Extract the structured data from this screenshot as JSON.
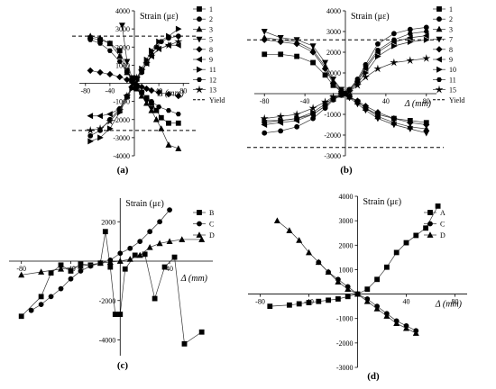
{
  "chart_data": [
    {
      "type": "line",
      "panel_label": "(a)",
      "ylabel": "Strain (με)",
      "xlabel": "Δ (mm)",
      "xlim": [
        -90,
        90
      ],
      "ylim": [
        -4000,
        4000
      ],
      "xticks": [
        -80,
        -40,
        0,
        40,
        80
      ],
      "yticks": [
        -4000,
        -3000,
        -2000,
        -1000,
        0,
        1000,
        2000,
        3000,
        4000
      ],
      "yield_lines": [
        2600,
        -2600
      ],
      "legend_position": "right",
      "series": [
        {
          "name": "1",
          "marker": "square",
          "x": [
            -72,
            -56,
            -40,
            -24,
            -12,
            -4,
            0,
            4,
            12,
            20,
            28,
            36,
            44,
            56,
            72
          ],
          "y": [
            2500,
            2400,
            2200,
            1800,
            700,
            200,
            0,
            -200,
            -500,
            -800,
            -1100,
            -1500,
            -1900,
            -2200,
            -2200
          ]
        },
        {
          "name": "2",
          "marker": "circle",
          "x": [
            -72,
            -56,
            -40,
            -24,
            -12,
            -4,
            0,
            4,
            12,
            20,
            28,
            36,
            44,
            56,
            72
          ],
          "y": [
            -2900,
            -2600,
            -2000,
            -1400,
            -700,
            -200,
            0,
            200,
            600,
            1100,
            1600,
            2000,
            2300,
            2500,
            2600
          ]
        },
        {
          "name": "3",
          "marker": "triangle-up",
          "x": [
            -72,
            -56,
            -40,
            -24,
            -12,
            -4,
            0,
            4,
            12,
            20,
            28,
            36,
            44,
            56,
            72
          ],
          "y": [
            2600,
            2500,
            2200,
            1500,
            600,
            200,
            0,
            -300,
            -700,
            -1100,
            -1500,
            -2000,
            -2500,
            -3400,
            -3600
          ]
        },
        {
          "name": "5",
          "marker": "triangle-down",
          "x": [
            -20,
            -12,
            -4,
            0,
            4,
            12,
            20,
            28
          ],
          "y": [
            3200,
            1200,
            300,
            0,
            -200,
            -600,
            -1000,
            -1400
          ]
        },
        {
          "name": "8",
          "marker": "diamond",
          "x": [
            -72,
            -56,
            -40,
            -24,
            -12,
            -4,
            0,
            4,
            12,
            20,
            28,
            40,
            56,
            72
          ],
          "y": [
            700,
            600,
            500,
            350,
            200,
            80,
            0,
            -100,
            -200,
            -300,
            -400,
            -500,
            -600,
            -700
          ]
        },
        {
          "name": "9",
          "marker": "triangle-left",
          "x": [
            -72,
            -56,
            -40,
            -24,
            -12,
            -4,
            0,
            4,
            12,
            20,
            28,
            40,
            56,
            72
          ],
          "y": [
            -1800,
            -1800,
            -1700,
            -1400,
            -700,
            -250,
            0,
            250,
            700,
            1100,
            1500,
            1900,
            2100,
            2100
          ]
        },
        {
          "name": "11",
          "marker": "triangle-right",
          "x": [
            -72,
            -56,
            -40,
            -24,
            -12,
            -4,
            0,
            4,
            12,
            20,
            28,
            40,
            56,
            72
          ],
          "y": [
            -3200,
            -3000,
            -2500,
            -1600,
            -800,
            -300,
            0,
            300,
            800,
            1300,
            1800,
            2300,
            2600,
            3000
          ]
        },
        {
          "name": "12",
          "marker": "hexagon",
          "x": [
            -72,
            -56,
            -40,
            -24,
            -12,
            -4,
            0,
            4,
            12,
            20,
            28,
            40,
            56,
            72
          ],
          "y": [
            2400,
            2200,
            1800,
            1200,
            600,
            200,
            0,
            -200,
            -500,
            -800,
            -1000,
            -1300,
            -1500,
            -1700
          ]
        },
        {
          "name": "13",
          "marker": "star",
          "x": [
            -72,
            -56,
            -40,
            -24,
            -12,
            -4,
            0,
            4,
            12,
            20,
            28,
            40,
            56,
            72
          ],
          "y": [
            -2600,
            -2500,
            -2100,
            -1500,
            -700,
            -250,
            0,
            300,
            700,
            1100,
            1500,
            1900,
            2100,
            2300
          ]
        },
        {
          "name": "Yield",
          "style": "dashed"
        }
      ]
    },
    {
      "type": "line",
      "panel_label": "(b)",
      "ylabel": "Strain (με)",
      "xlabel": "Δ (mm)",
      "xlim": [
        -90,
        90
      ],
      "ylim": [
        -3000,
        4000
      ],
      "xticks": [
        -80,
        -40,
        0,
        40,
        80
      ],
      "yticks": [
        -3000,
        -2000,
        -1000,
        0,
        1000,
        2000,
        3000,
        4000
      ],
      "yield_lines": [
        2600,
        -2600
      ],
      "legend_position": "right",
      "series": [
        {
          "name": "1",
          "marker": "square",
          "x": [
            -80,
            -64,
            -48,
            -32,
            -20,
            -12,
            -4,
            0,
            4,
            12,
            20,
            32,
            48,
            64,
            80
          ],
          "y": [
            1900,
            1900,
            1800,
            1500,
            900,
            400,
            100,
            0,
            -150,
            -400,
            -700,
            -1000,
            -1200,
            -1300,
            -1400
          ]
        },
        {
          "name": "2",
          "marker": "circle",
          "x": [
            -80,
            -64,
            -48,
            -32,
            -20,
            -12,
            -4,
            0,
            4,
            12,
            20,
            32,
            48,
            64,
            80
          ],
          "y": [
            -1900,
            -1800,
            -1600,
            -1200,
            -700,
            -300,
            -80,
            0,
            200,
            700,
            1400,
            2400,
            2900,
            3100,
            3200
          ]
        },
        {
          "name": "3",
          "marker": "triangle-up",
          "x": [
            -80,
            -64,
            -48,
            -32,
            -20,
            -12,
            -4,
            0,
            4,
            12,
            20,
            32,
            48,
            64,
            80
          ],
          "y": [
            2700,
            2600,
            2500,
            2100,
            1300,
            600,
            150,
            0,
            -150,
            -400,
            -700,
            -1100,
            -1400,
            -1600,
            -1700
          ]
        },
        {
          "name": "7",
          "marker": "triangle-down",
          "x": [
            -80,
            -64,
            -48,
            -32,
            -20,
            -12,
            -4,
            0,
            4,
            12,
            20,
            32,
            48,
            64,
            80
          ],
          "y": [
            3000,
            2700,
            2600,
            2300,
            1500,
            700,
            200,
            0,
            -200,
            -500,
            -800,
            -1200,
            -1500,
            -1700,
            -1900
          ]
        },
        {
          "name": "8",
          "marker": "diamond",
          "x": [
            -80,
            -64,
            -48,
            -32,
            -20,
            -12,
            -4,
            0,
            4,
            12,
            20,
            32,
            48,
            64,
            80
          ],
          "y": [
            2600,
            2500,
            2400,
            2000,
            1200,
            500,
            100,
            0,
            -150,
            -350,
            -600,
            -900,
            -1200,
            -1400,
            -1500
          ]
        },
        {
          "name": "9",
          "marker": "triangle-left",
          "x": [
            -80,
            -64,
            -48,
            -32,
            -20,
            -12,
            -4,
            0,
            4,
            12,
            20,
            32,
            48,
            64,
            80
          ],
          "y": [
            -1500,
            -1400,
            -1300,
            -1000,
            -600,
            -250,
            -60,
            0,
            200,
            600,
            1200,
            2000,
            2500,
            2700,
            2800
          ]
        },
        {
          "name": "10",
          "marker": "triangle-right",
          "x": [
            -80,
            -64,
            -48,
            -32,
            -20,
            -12,
            -4,
            0,
            4,
            12,
            20,
            32,
            48,
            64,
            80
          ],
          "y": [
            -1300,
            -1300,
            -1200,
            -900,
            -500,
            -200,
            -50,
            0,
            150,
            500,
            1000,
            1800,
            2300,
            2500,
            2600
          ]
        },
        {
          "name": "11",
          "marker": "hexagon",
          "x": [
            -80,
            -64,
            -48,
            -32,
            -20,
            -12,
            -4,
            0,
            4,
            12,
            20,
            32,
            48,
            64,
            80
          ],
          "y": [
            -1400,
            -1300,
            -1200,
            -1000,
            -600,
            -250,
            -60,
            0,
            200,
            600,
            1300,
            2100,
            2600,
            2900,
            3000
          ]
        },
        {
          "name": "15",
          "marker": "star",
          "x": [
            -80,
            -64,
            -48,
            -32,
            -20,
            -12,
            -4,
            0,
            4,
            12,
            20,
            32,
            48,
            64,
            80
          ],
          "y": [
            -1200,
            -1100,
            -1000,
            -700,
            -400,
            -150,
            -40,
            0,
            100,
            400,
            800,
            1200,
            1500,
            1600,
            1700
          ]
        },
        {
          "name": "Yield",
          "style": "dashed"
        }
      ]
    },
    {
      "type": "line",
      "panel_label": "(c)",
      "ylabel": "Strain (με)",
      "xlabel": "Δ (mm)",
      "xlim": [
        -90,
        75
      ],
      "ylim": [
        -4800,
        3200
      ],
      "xticks": [
        -80,
        -40,
        0,
        40
      ],
      "yticks": [
        -4000,
        -2000,
        0,
        2000
      ],
      "legend_position": "top-right",
      "series": [
        {
          "name": "B",
          "marker": "square",
          "x": [
            -80,
            -64,
            -56,
            -48,
            -40,
            -32,
            -24,
            -16,
            -12,
            -8,
            -4,
            0,
            4,
            12,
            20,
            28,
            36,
            44,
            52,
            66
          ],
          "y": [
            -2800,
            -1800,
            -600,
            -200,
            -500,
            -150,
            -200,
            -100,
            1500,
            -300,
            -2700,
            -2700,
            -400,
            300,
            350,
            -1900,
            -300,
            200,
            -4200,
            -3600
          ]
        },
        {
          "name": "C",
          "marker": "circle",
          "x": [
            -72,
            -64,
            -56,
            -48,
            -40,
            -32,
            -24,
            -16,
            -8,
            0,
            8,
            16,
            24,
            32,
            40
          ],
          "y": [
            -2500,
            -2200,
            -1800,
            -1400,
            -900,
            -500,
            -250,
            -100,
            50,
            400,
            650,
            1000,
            1500,
            2000,
            2600
          ]
        },
        {
          "name": "D",
          "marker": "triangle-up",
          "x": [
            -80,
            -64,
            -48,
            -32,
            -16,
            -8,
            0,
            8,
            16,
            24,
            32,
            40,
            50,
            66
          ],
          "y": [
            -700,
            -550,
            -400,
            -250,
            -100,
            -50,
            0,
            100,
            300,
            700,
            900,
            1000,
            1100,
            1100
          ]
        }
      ]
    },
    {
      "type": "line",
      "panel_label": "(d)",
      "ylabel": "Strain (με)",
      "xlabel": "Δ (mm)",
      "xlim": [
        -90,
        90
      ],
      "ylim": [
        -3000,
        4000
      ],
      "xticks": [
        -80,
        -40,
        0,
        40,
        80
      ],
      "yticks": [
        -3000,
        -2000,
        -1000,
        0,
        1000,
        2000,
        3000,
        4000
      ],
      "legend_position": "top-right",
      "series": [
        {
          "name": "A",
          "marker": "square",
          "x": [
            -72,
            -56,
            -48,
            -40,
            -32,
            -24,
            -16,
            -8,
            0,
            8,
            16,
            24,
            32,
            40,
            48,
            56,
            66
          ],
          "y": [
            -500,
            -450,
            -400,
            -350,
            -300,
            -250,
            -200,
            -100,
            0,
            200,
            600,
            1100,
            1700,
            2100,
            2400,
            2700,
            3600
          ]
        },
        {
          "name": "C",
          "marker": "circle",
          "x": [
            -32,
            -24,
            -16,
            -8,
            0,
            8,
            16,
            24,
            32,
            40,
            48
          ],
          "y": [
            1300,
            900,
            600,
            300,
            0,
            -200,
            -500,
            -800,
            -1100,
            -1300,
            -1500
          ]
        },
        {
          "name": "D",
          "marker": "triangle-up",
          "x": [
            -66,
            -56,
            -48,
            -40,
            -32,
            -24,
            -16,
            -8,
            0,
            8,
            16,
            24,
            32,
            40,
            48
          ],
          "y": [
            3000,
            2600,
            2200,
            1700,
            1300,
            900,
            500,
            200,
            0,
            -300,
            -600,
            -900,
            -1200,
            -1400,
            -1600
          ]
        }
      ]
    }
  ]
}
